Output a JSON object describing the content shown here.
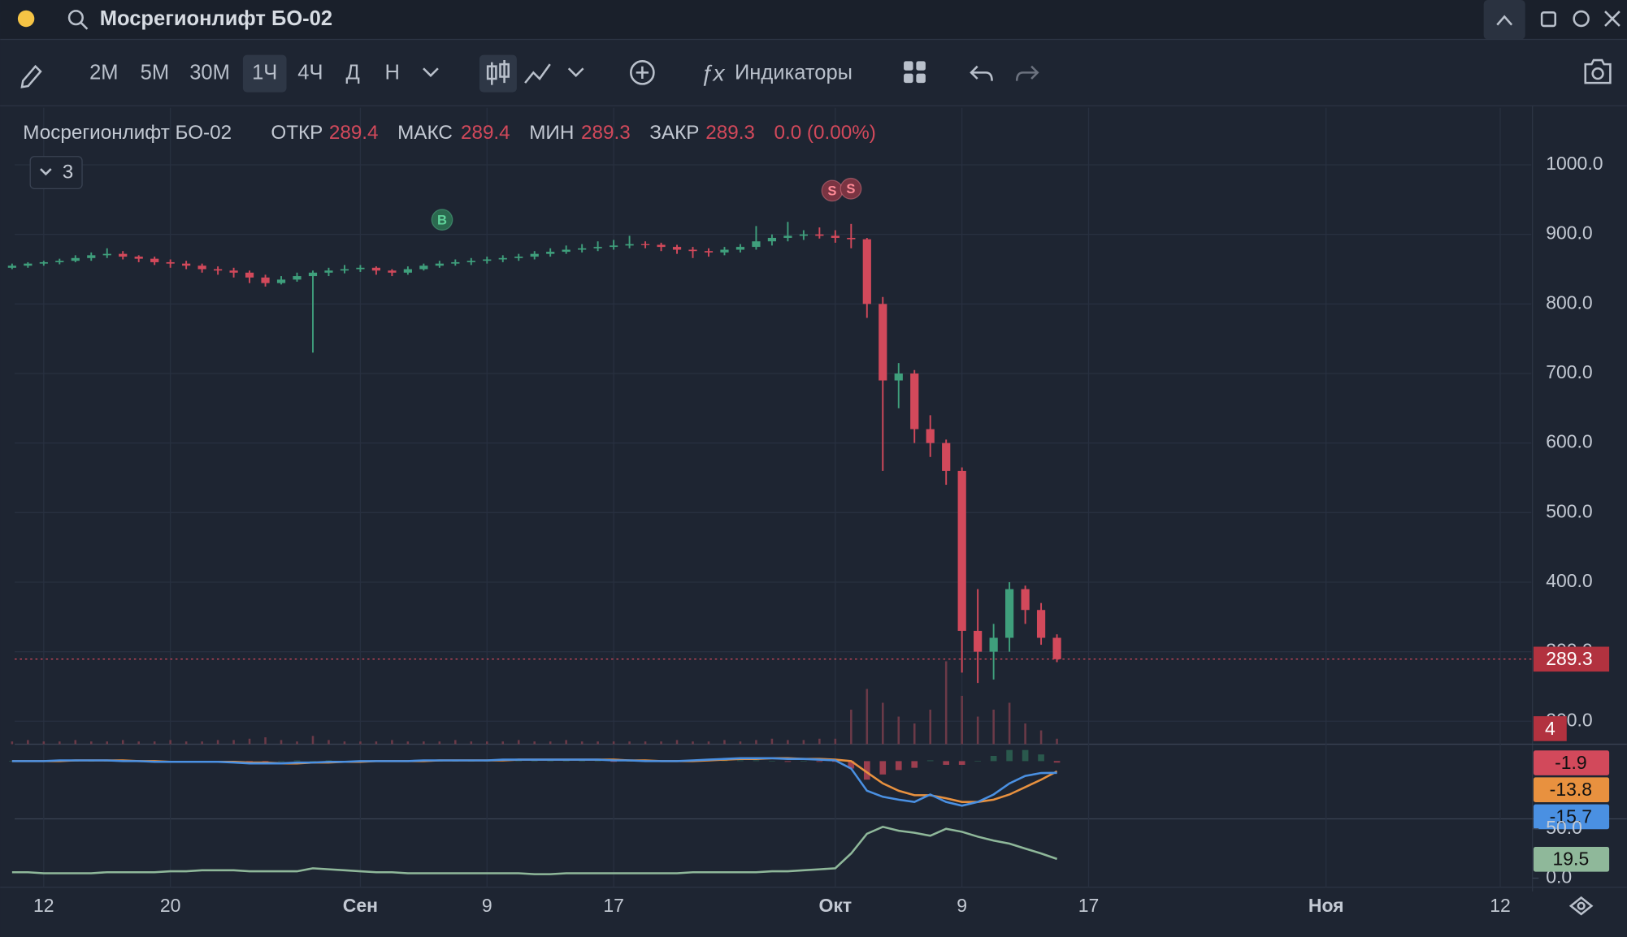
{
  "toolbar": {
    "symbol": "Мосрегионлифт БО-02",
    "timeframes": [
      "2М",
      "5М",
      "30М",
      "1Ч",
      "4Ч",
      "Д",
      "Н"
    ],
    "active_timeframe": "1Ч",
    "indicators_button": "Индикаторы"
  },
  "legend": {
    "symbol": "Мосрегионлифт БО-02",
    "open_label": "ОТКР",
    "open": 289.4,
    "high_label": "МАКС",
    "high": 289.4,
    "low_label": "МИН",
    "low": 289.3,
    "close_label": "ЗАКР",
    "close": 289.3,
    "change": "0.0 (0.00%)",
    "studies_count": 3
  },
  "trade_markers": [
    "B",
    "S",
    "S"
  ],
  "chart_data": {
    "type": "candlestick",
    "categories": [
      null,
      null,
      "12",
      null,
      null,
      null,
      null,
      null,
      null,
      null,
      "20",
      null,
      null,
      null,
      null,
      null,
      null,
      null,
      null,
      null,
      null,
      null,
      "Сен",
      null,
      null,
      null,
      null,
      null,
      null,
      null,
      "9",
      null,
      null,
      null,
      null,
      null,
      null,
      null,
      "17",
      null,
      null,
      null,
      null,
      null,
      null,
      null,
      null,
      null,
      null,
      null,
      null,
      null,
      "Окт",
      null,
      null,
      null,
      null,
      null,
      null,
      null,
      "9",
      null,
      null,
      null,
      null,
      null,
      null,
      null,
      "17",
      null,
      null,
      null,
      null,
      null,
      null,
      null,
      null,
      null,
      null,
      null,
      null,
      null,
      null,
      "Ноя",
      null,
      null,
      null,
      null,
      null,
      null,
      null,
      null,
      null,
      null,
      "12",
      null
    ],
    "ohlc": [
      [
        852,
        858,
        850,
        855
      ],
      [
        855,
        860,
        852,
        858
      ],
      [
        858,
        862,
        855,
        860
      ],
      [
        860,
        865,
        857,
        862
      ],
      [
        862,
        870,
        860,
        866
      ],
      [
        866,
        874,
        862,
        870
      ],
      [
        870,
        880,
        866,
        872
      ],
      [
        872,
        876,
        864,
        868
      ],
      [
        868,
        870,
        860,
        865
      ],
      [
        865,
        868,
        856,
        860
      ],
      [
        860,
        864,
        852,
        858
      ],
      [
        858,
        862,
        850,
        855
      ],
      [
        855,
        858,
        845,
        850
      ],
      [
        850,
        854,
        842,
        848
      ],
      [
        848,
        852,
        838,
        845
      ],
      [
        845,
        848,
        830,
        838
      ],
      [
        838,
        842,
        825,
        830
      ],
      [
        830,
        840,
        828,
        835
      ],
      [
        835,
        845,
        832,
        840
      ],
      [
        840,
        848,
        730,
        845
      ],
      [
        845,
        852,
        840,
        848
      ],
      [
        848,
        856,
        844,
        850
      ],
      [
        850,
        856,
        846,
        852
      ],
      [
        852,
        854,
        842,
        848
      ],
      [
        848,
        850,
        840,
        845
      ],
      [
        845,
        854,
        842,
        850
      ],
      [
        850,
        858,
        848,
        855
      ],
      [
        855,
        862,
        852,
        858
      ],
      [
        858,
        864,
        855,
        860
      ],
      [
        860,
        866,
        856,
        862
      ],
      [
        862,
        868,
        858,
        864
      ],
      [
        864,
        870,
        860,
        866
      ],
      [
        866,
        872,
        862,
        868
      ],
      [
        868,
        876,
        864,
        872
      ],
      [
        872,
        880,
        868,
        875
      ],
      [
        875,
        884,
        872,
        878
      ],
      [
        878,
        886,
        874,
        880
      ],
      [
        880,
        890,
        876,
        882
      ],
      [
        882,
        892,
        878,
        884
      ],
      [
        884,
        898,
        880,
        886
      ],
      [
        886,
        890,
        880,
        885
      ],
      [
        885,
        888,
        876,
        882
      ],
      [
        882,
        885,
        872,
        878
      ],
      [
        878,
        882,
        866,
        876
      ],
      [
        876,
        880,
        868,
        874
      ],
      [
        874,
        882,
        870,
        878
      ],
      [
        878,
        886,
        874,
        882
      ],
      [
        882,
        912,
        878,
        890
      ],
      [
        890,
        900,
        884,
        895
      ],
      [
        895,
        918,
        890,
        898
      ],
      [
        898,
        906,
        892,
        900
      ],
      [
        900,
        910,
        894,
        898
      ],
      [
        898,
        906,
        888,
        895
      ],
      [
        895,
        915,
        880,
        893
      ],
      [
        893,
        895,
        780,
        800
      ],
      [
        800,
        810,
        560,
        690
      ],
      [
        690,
        715,
        650,
        700
      ],
      [
        700,
        705,
        600,
        620
      ],
      [
        620,
        640,
        580,
        600
      ],
      [
        600,
        605,
        540,
        560
      ],
      [
        560,
        565,
        270,
        330
      ],
      [
        330,
        390,
        255,
        300
      ],
      [
        300,
        340,
        260,
        320
      ],
      [
        320,
        400,
        300,
        390
      ],
      [
        390,
        395,
        340,
        360
      ],
      [
        360,
        370,
        310,
        320
      ],
      [
        320,
        325,
        285,
        289.3
      ],
      null,
      null,
      null,
      null,
      null,
      null,
      null,
      null,
      null,
      null,
      null,
      null,
      null,
      null,
      null,
      null,
      null,
      null,
      null,
      null,
      null,
      null,
      null,
      null,
      null,
      null,
      null,
      null,
      null
    ],
    "volume": [
      2,
      3,
      2,
      2,
      3,
      2,
      2,
      3,
      2,
      2,
      3,
      2,
      2,
      3,
      3,
      4,
      5,
      3,
      2,
      6,
      3,
      2,
      2,
      2,
      3,
      2,
      2,
      2,
      3,
      2,
      2,
      2,
      3,
      2,
      2,
      3,
      2,
      2,
      2,
      2,
      2,
      2,
      3,
      2,
      2,
      3,
      2,
      3,
      4,
      3,
      3,
      4,
      4,
      25,
      40,
      30,
      20,
      15,
      25,
      60,
      35,
      20,
      25,
      30,
      15,
      10,
      4,
      null,
      null,
      null,
      null,
      null,
      null,
      null,
      null,
      null,
      null,
      null,
      null,
      null,
      null,
      null,
      null,
      null,
      null,
      null,
      null,
      null,
      null,
      null,
      null,
      null,
      null,
      null,
      null,
      null
    ],
    "up_color": "#3f9f7c",
    "down_color": "#d2495b",
    "volume_color": "#6b3a48",
    "ylim": [
      167,
      1082
    ],
    "yticks": [
      {
        "value": 200,
        "label": "200.0"
      },
      {
        "value": 300,
        "label": "300.0"
      },
      {
        "value": 400,
        "label": "400.0"
      },
      {
        "value": 500,
        "label": "500.0"
      },
      {
        "value": 600,
        "label": "600.0"
      },
      {
        "value": 700,
        "label": "700.0"
      },
      {
        "value": 800,
        "label": "800.0"
      },
      {
        "value": 900,
        "label": "900.0"
      },
      {
        "value": 1000,
        "label": "1000.0"
      }
    ],
    "grid": true,
    "panes": [
      {
        "type": "line",
        "ylim": [
          -75,
          20
        ],
        "histogram": {
          "color": "#d2495b",
          "values": [
            0,
            0,
            0,
            1,
            0,
            0,
            0,
            -1,
            0,
            -1,
            0,
            0,
            0,
            0,
            -1,
            -1,
            -1,
            0,
            1,
            0,
            1,
            0,
            1,
            0,
            0,
            0,
            1,
            0,
            0,
            0,
            0,
            1,
            0,
            0,
            0,
            0,
            0,
            0,
            -1,
            0,
            -1,
            0,
            0,
            1,
            1,
            1,
            1,
            1,
            0,
            -1,
            0,
            -1,
            -1,
            -10,
            -25,
            -18,
            -12,
            -9,
            1,
            -5,
            -5,
            0,
            7,
            15,
            15,
            9,
            -1.9,
            null,
            null,
            null,
            null,
            null,
            null,
            null,
            null,
            null,
            null,
            null,
            null,
            null,
            null,
            null,
            null,
            null,
            null,
            null,
            null,
            null,
            null,
            null,
            null,
            null,
            null,
            null,
            null,
            null
          ]
        },
        "series": [
          {
            "color": "#e8913f",
            "values": [
              0,
              0,
              0,
              0,
              1,
              1,
              1,
              1,
              0,
              0,
              -1,
              -1,
              -1,
              -1,
              -1,
              -2,
              -2,
              -3,
              -3,
              -2,
              -2,
              -1,
              -1,
              0,
              0,
              0,
              0,
              1,
              1,
              1,
              1,
              1,
              2,
              2,
              2,
              2,
              2,
              2,
              2,
              1,
              1,
              0,
              0,
              0,
              1,
              2,
              3,
              3,
              4,
              4,
              3,
              3,
              2,
              0,
              -15,
              -30,
              -40,
              -46,
              -46,
              -50,
              -55,
              -55,
              -52,
              -45,
              -35,
              -25,
              -13.8,
              null,
              null,
              null,
              null,
              null,
              null,
              null,
              null,
              null,
              null,
              null,
              null,
              null,
              null,
              null,
              null,
              null,
              null,
              null,
              null,
              null,
              null,
              null,
              null,
              null,
              null,
              null,
              null,
              null
            ]
          },
          {
            "color": "#4a90e2",
            "values": [
              0,
              0,
              0,
              1,
              1,
              1,
              1,
              0,
              0,
              -1,
              -1,
              -1,
              -1,
              -1,
              -2,
              -3,
              -3,
              -3,
              -2,
              -2,
              -1,
              -1,
              0,
              0,
              0,
              0,
              1,
              1,
              1,
              1,
              1,
              2,
              2,
              2,
              2,
              2,
              2,
              2,
              1,
              1,
              0,
              0,
              0,
              1,
              2,
              3,
              4,
              4,
              4,
              3,
              3,
              2,
              1,
              -10,
              -40,
              -48,
              -52,
              -55,
              -45,
              -55,
              -60,
              -55,
              -45,
              -30,
              -20,
              -16,
              -15.7,
              null,
              null,
              null,
              null,
              null,
              null,
              null,
              null,
              null,
              null,
              null,
              null,
              null,
              null,
              null,
              null,
              null,
              null,
              null,
              null,
              null,
              null,
              null,
              null,
              null,
              null,
              null,
              null,
              null
            ]
          }
        ]
      },
      {
        "type": "line",
        "ylim": [
          -5,
          58
        ],
        "yticks": [
          {
            "value": 0,
            "label": "0.0"
          },
          {
            "value": 50,
            "label": "50.0"
          }
        ],
        "series": [
          {
            "color": "#8fb89a",
            "values": [
              6,
              6,
              5,
              5,
              5,
              5,
              6,
              6,
              6,
              6,
              7,
              7,
              8,
              8,
              8,
              7,
              7,
              7,
              7,
              10,
              9,
              8,
              7,
              6,
              6,
              5,
              5,
              5,
              5,
              5,
              5,
              5,
              5,
              4,
              4,
              5,
              5,
              5,
              5,
              5,
              5,
              5,
              5,
              6,
              6,
              6,
              6,
              6,
              7,
              7,
              8,
              9,
              10,
              25,
              45,
              52,
              48,
              46,
              43,
              50,
              47,
              42,
              38,
              35,
              30,
              25,
              19.5,
              null,
              null,
              null,
              null,
              null,
              null,
              null,
              null,
              null,
              null,
              null,
              null,
              null,
              null,
              null,
              null,
              null,
              null,
              null,
              null,
              null,
              null,
              null,
              null,
              null,
              null,
              null,
              null,
              null
            ]
          }
        ]
      }
    ]
  }
}
